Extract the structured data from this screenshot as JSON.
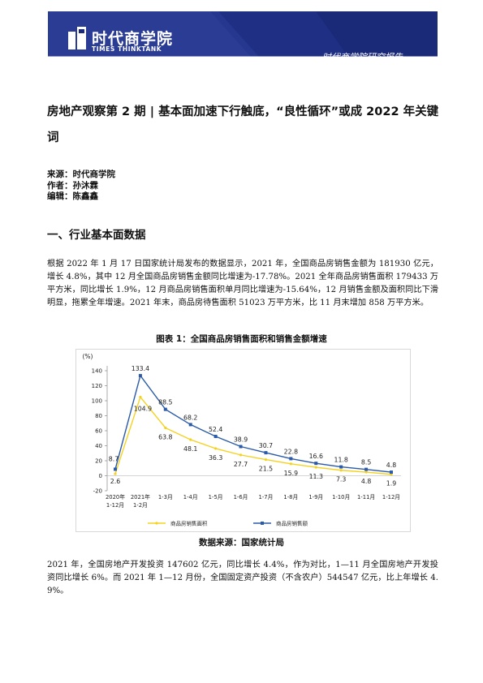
{
  "header": {
    "logo_title": "时代商学院",
    "logo_sub": "TIMES THINKTANK",
    "right_text": "时代商学院研究报告",
    "band_color": "#1b2a78",
    "accent_color": "#ffffff"
  },
  "article": {
    "title": "房地产观察第 2 期 | 基本面加速下行触底，“良性循环”或成 2022 年关键词",
    "source_line": "来源：时代商学院",
    "author_line": "作者：孙沐霖",
    "editor_line": "编辑：陈鑫鑫",
    "section_heading": "一、行业基本面数据",
    "para1": "根据 2022 年 1 月 17 日国家统计局发布的数据显示，2021 年，全国商品房销售金额为 181930 亿元，增长 4.8%，其中 12 月全国商品房销售金额同比增速为-17.78%。2021 全年商品房销售面积 179433 万平方米，同比增长 1.9%，12 月商品房销售面积单月同比增速为-15.64%，12 月销售金额及面积同比下滑明显，拖累全年增速。2021 年末，商品房待售面积 51023 万平方米，比 11 月末增加 858 万平方米。",
    "figure_caption": "图表 1：全国商品房销售面积和销售金额增速",
    "figure_source": "数据来源：国家统计局",
    "para2": "2021 年，全国房地产开发投资 147602 亿元，同比增长 4.4%，作为对比，1—11 月全国房地产开发投资同比增长 6%。而 2021 年 1—12 月份，全国固定资产投资（不含农户）544547 亿元，比上年增长 4.9%。"
  },
  "chart_data": {
    "type": "line",
    "ylabel": "(%)",
    "ylim": [
      -20,
      140
    ],
    "yticks": [
      -20,
      0,
      20,
      40,
      60,
      80,
      100,
      120,
      140
    ],
    "categories": [
      "2020年 1-12月",
      "2021年 1-2月",
      "1-3月",
      "1-4月",
      "1-5月",
      "1-6月",
      "1-7月",
      "1-8月",
      "1-9月",
      "1-10月",
      "1-11月",
      "1-12月"
    ],
    "series": [
      {
        "name": "商品房销售面积",
        "color": "#f5d21f",
        "values": [
          2.6,
          104.9,
          63.8,
          48.1,
          36.3,
          27.7,
          21.5,
          15.9,
          11.3,
          7.3,
          4.8,
          1.9
        ]
      },
      {
        "name": "商品房销售额",
        "color": "#2a5aa8",
        "values": [
          8.7,
          133.4,
          88.5,
          68.2,
          52.4,
          38.9,
          30.7,
          22.8,
          16.6,
          11.8,
          8.5,
          4.8
        ]
      }
    ],
    "grid": false,
    "legend": "bottom"
  }
}
